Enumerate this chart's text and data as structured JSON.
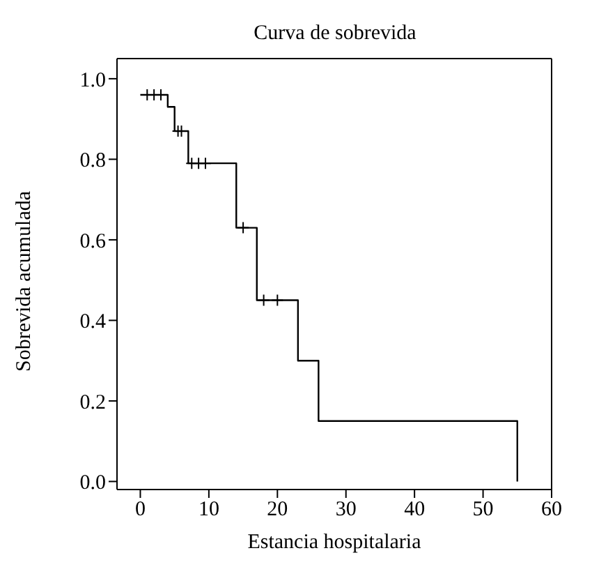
{
  "chart_data": {
    "type": "step",
    "title": "Curva de sobrevida",
    "xlabel": "Estancia hospitalaria",
    "ylabel": "Sobrevida acumulada",
    "series": [
      {
        "color": "#000000",
        "x": [
          0,
          4,
          5,
          7,
          14,
          17,
          23,
          26,
          55
        ],
        "values": [
          0.96,
          0.93,
          0.87,
          0.79,
          0.63,
          0.45,
          0.3,
          0.15,
          0.0
        ]
      },
      {
        "type": "scatter",
        "color": "#000000",
        "marker": "cross",
        "x": [
          1,
          2,
          3,
          5.5,
          6,
          7.5,
          8.5,
          9.5,
          15,
          18,
          20
        ],
        "values": [
          0.96,
          0.96,
          0.96,
          0.87,
          0.87,
          0.79,
          0.79,
          0.79,
          0.63,
          0.45,
          0.45
        ]
      }
    ],
    "xlim": [
      -3.4,
      60
    ],
    "xticks": [
      0,
      10,
      20,
      30,
      40,
      50,
      60
    ],
    "ylim": [
      -0.02,
      1.05
    ],
    "yticks": [
      {
        "value": 0,
        "label": "0.0"
      },
      {
        "value": 0.2,
        "label": "0.2"
      },
      {
        "value": 0.4,
        "label": "0.4"
      },
      {
        "value": 0.6,
        "label": "0.6"
      },
      {
        "value": 0.8,
        "label": "0.8"
      },
      {
        "value": 1,
        "label": "1.0"
      }
    ]
  }
}
